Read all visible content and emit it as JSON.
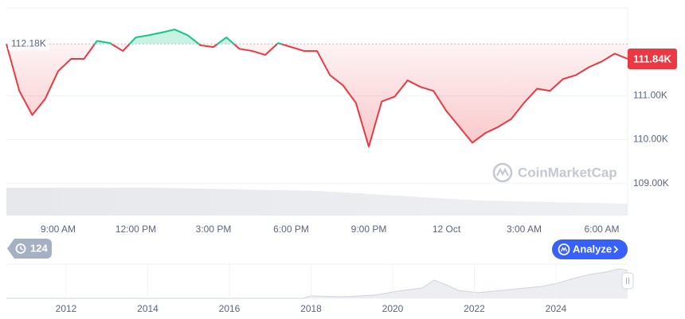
{
  "chart_data": {
    "type": "line",
    "x": [
      0,
      0.5,
      1,
      1.5,
      2,
      2.5,
      3,
      3.5,
      4,
      4.5,
      5,
      5.5,
      6,
      6.5,
      7,
      7.5,
      8,
      8.5,
      9,
      9.5,
      10,
      10.5,
      11,
      11.5,
      12,
      12.5,
      13,
      13.5,
      14,
      14.5,
      15,
      15.5,
      16,
      16.5,
      17,
      17.5,
      18,
      18.5,
      19,
      19.5,
      20,
      20.5,
      21,
      21.5,
      22,
      22.5,
      23,
      23.5,
      24
    ],
    "values": [
      112.18,
      111.11,
      110.56,
      110.93,
      111.56,
      111.84,
      111.84,
      112.25,
      112.2,
      112.02,
      112.33,
      112.38,
      112.44,
      112.51,
      112.38,
      112.15,
      112.11,
      112.33,
      112.07,
      112.02,
      111.93,
      112.2,
      112.11,
      112.02,
      112.02,
      111.47,
      111.24,
      110.84,
      109.84,
      110.87,
      110.98,
      111.35,
      111.2,
      111.11,
      110.65,
      110.29,
      109.93,
      110.15,
      110.29,
      110.47,
      110.84,
      111.16,
      111.11,
      111.38,
      111.47,
      111.65,
      111.78,
      111.96,
      111.84
    ],
    "color": {
      "above": "#16c784",
      "below": "#ea3943"
    },
    "xlim": [
      0,
      24
    ],
    "xticks": [
      {
        "value": 2,
        "label": "9:00 AM"
      },
      {
        "value": 5,
        "label": "12:00 PM"
      },
      {
        "value": 8,
        "label": "3:00 PM"
      },
      {
        "value": 11,
        "label": "6:00 PM"
      },
      {
        "value": 14,
        "label": "9:00 PM"
      },
      {
        "value": 17,
        "label": "12 Oct"
      },
      {
        "value": 20,
        "label": "3:00 AM"
      },
      {
        "value": 23,
        "label": "6:00 AM"
      }
    ],
    "ylim": [
      108.27,
      113.0
    ],
    "yticks": [
      {
        "value": 109,
        "label": "109.00K"
      },
      {
        "value": 110,
        "label": "110.00K"
      },
      {
        "value": 111,
        "label": "111.00K"
      }
    ],
    "grid": true,
    "baseline": {
      "value": 112.18,
      "label": "112.18K"
    },
    "last_price": {
      "value": 111.84,
      "label": "111.84K"
    },
    "watermark": "CoinMarketCap"
  },
  "history_badge": "124",
  "analyze_button": "Analyze",
  "overview_years": [
    "2012",
    "2014",
    "2016",
    "2018",
    "2020",
    "2022",
    "2024"
  ]
}
